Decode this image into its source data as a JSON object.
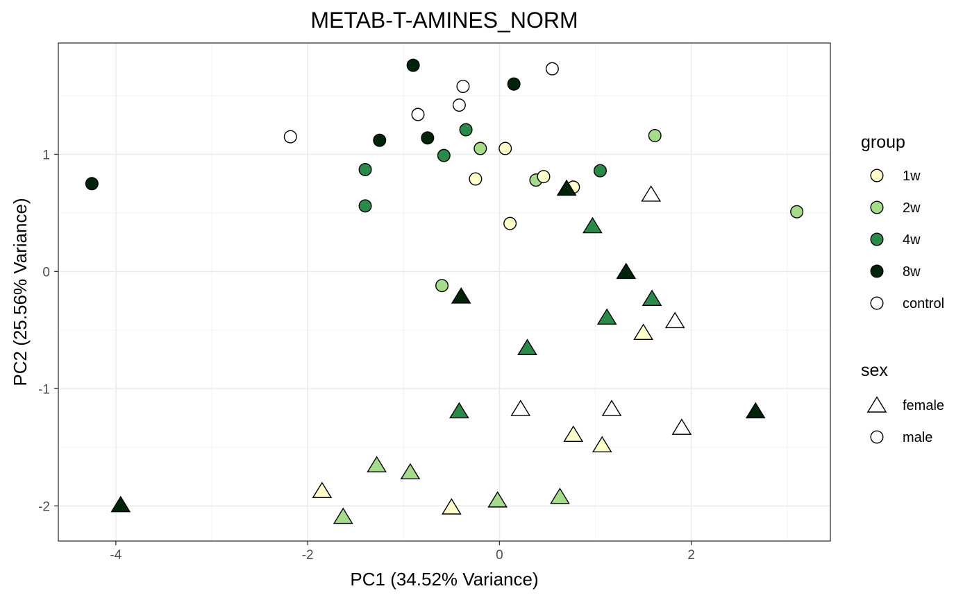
{
  "chart_data": {
    "type": "scatter",
    "title": "METAB-T-AMINES_NORM",
    "xlabel": "PC1 (34.52% Variance)",
    "ylabel": "PC2 (25.56% Variance)",
    "xlim": [
      -4.6,
      3.45
    ],
    "ylim": [
      -2.3,
      1.95
    ],
    "x_ticks": [
      -4,
      -2,
      0,
      2
    ],
    "x_tick_labels": [
      "-4",
      "-2",
      "0",
      "2"
    ],
    "y_ticks": [
      -2,
      -1,
      0,
      1
    ],
    "y_tick_labels": [
      "-2",
      "-1",
      "0",
      "1"
    ],
    "grid": true,
    "legend": {
      "position": "right",
      "group_title": "group",
      "groups": [
        {
          "name": "1w",
          "color": "#FFFFCC"
        },
        {
          "name": "2w",
          "color": "#A6DB8C"
        },
        {
          "name": "4w",
          "color": "#2B8A4A"
        },
        {
          "name": "8w",
          "color": "#00240A"
        },
        {
          "name": "control",
          "color": "#FFFFFF"
        }
      ],
      "sex_title": "sex",
      "sexes": [
        {
          "name": "female",
          "shape": "triangle"
        },
        {
          "name": "male",
          "shape": "circle"
        }
      ]
    },
    "points": [
      {
        "x": -4.25,
        "y": 0.75,
        "group": "8w",
        "sex": "male"
      },
      {
        "x": -0.9,
        "y": 1.76,
        "group": "8w",
        "sex": "male"
      },
      {
        "x": 0.15,
        "y": 1.6,
        "group": "8w",
        "sex": "male"
      },
      {
        "x": -1.25,
        "y": 1.12,
        "group": "8w",
        "sex": "male"
      },
      {
        "x": -0.75,
        "y": 1.14,
        "group": "8w",
        "sex": "male"
      },
      {
        "x": 0.55,
        "y": 1.73,
        "group": "control",
        "sex": "male"
      },
      {
        "x": -0.38,
        "y": 1.58,
        "group": "control",
        "sex": "male"
      },
      {
        "x": -0.42,
        "y": 1.42,
        "group": "control",
        "sex": "male"
      },
      {
        "x": -0.85,
        "y": 1.34,
        "group": "control",
        "sex": "male"
      },
      {
        "x": -2.18,
        "y": 1.15,
        "group": "control",
        "sex": "male"
      },
      {
        "x": -1.4,
        "y": 0.87,
        "group": "4w",
        "sex": "male"
      },
      {
        "x": -1.4,
        "y": 0.56,
        "group": "4w",
        "sex": "male"
      },
      {
        "x": -0.35,
        "y": 1.21,
        "group": "4w",
        "sex": "male"
      },
      {
        "x": -0.58,
        "y": 0.99,
        "group": "4w",
        "sex": "male"
      },
      {
        "x": 1.05,
        "y": 0.86,
        "group": "4w",
        "sex": "male"
      },
      {
        "x": -0.2,
        "y": 1.05,
        "group": "2w",
        "sex": "male"
      },
      {
        "x": 0.38,
        "y": 0.78,
        "group": "2w",
        "sex": "male"
      },
      {
        "x": 1.62,
        "y": 1.16,
        "group": "2w",
        "sex": "male"
      },
      {
        "x": 3.1,
        "y": 0.51,
        "group": "2w",
        "sex": "male"
      },
      {
        "x": -0.6,
        "y": -0.12,
        "group": "2w",
        "sex": "male"
      },
      {
        "x": 0.06,
        "y": 1.05,
        "group": "1w",
        "sex": "male"
      },
      {
        "x": -0.25,
        "y": 0.79,
        "group": "1w",
        "sex": "male"
      },
      {
        "x": 0.46,
        "y": 0.81,
        "group": "1w",
        "sex": "male"
      },
      {
        "x": 0.77,
        "y": 0.72,
        "group": "1w",
        "sex": "male"
      },
      {
        "x": 0.11,
        "y": 0.41,
        "group": "1w",
        "sex": "male"
      },
      {
        "x": 0.7,
        "y": 0.71,
        "group": "8w",
        "sex": "female"
      },
      {
        "x": 1.32,
        "y": 0.0,
        "group": "8w",
        "sex": "female"
      },
      {
        "x": -0.4,
        "y": -0.21,
        "group": "8w",
        "sex": "female"
      },
      {
        "x": 2.67,
        "y": -1.19,
        "group": "8w",
        "sex": "female"
      },
      {
        "x": -3.95,
        "y": -1.99,
        "group": "8w",
        "sex": "female"
      },
      {
        "x": 0.97,
        "y": 0.39,
        "group": "4w",
        "sex": "female"
      },
      {
        "x": 1.59,
        "y": -0.23,
        "group": "4w",
        "sex": "female"
      },
      {
        "x": 1.12,
        "y": -0.39,
        "group": "4w",
        "sex": "female"
      },
      {
        "x": 0.29,
        "y": -0.65,
        "group": "4w",
        "sex": "female"
      },
      {
        "x": -0.42,
        "y": -1.19,
        "group": "4w",
        "sex": "female"
      },
      {
        "x": 1.58,
        "y": 0.66,
        "group": "control",
        "sex": "female"
      },
      {
        "x": 1.83,
        "y": -0.42,
        "group": "control",
        "sex": "female"
      },
      {
        "x": 0.22,
        "y": -1.17,
        "group": "control",
        "sex": "female"
      },
      {
        "x": 1.17,
        "y": -1.17,
        "group": "control",
        "sex": "female"
      },
      {
        "x": 1.9,
        "y": -1.33,
        "group": "control",
        "sex": "female"
      },
      {
        "x": 1.5,
        "y": -0.52,
        "group": "1w",
        "sex": "female"
      },
      {
        "x": 0.77,
        "y": -1.39,
        "group": "1w",
        "sex": "female"
      },
      {
        "x": 1.07,
        "y": -1.48,
        "group": "1w",
        "sex": "female"
      },
      {
        "x": -1.85,
        "y": -1.87,
        "group": "1w",
        "sex": "female"
      },
      {
        "x": -0.5,
        "y": -2.01,
        "group": "1w",
        "sex": "female"
      },
      {
        "x": -1.28,
        "y": -1.65,
        "group": "2w",
        "sex": "female"
      },
      {
        "x": -0.93,
        "y": -1.71,
        "group": "2w",
        "sex": "female"
      },
      {
        "x": -1.63,
        "y": -2.09,
        "group": "2w",
        "sex": "female"
      },
      {
        "x": -0.02,
        "y": -1.95,
        "group": "2w",
        "sex": "female"
      },
      {
        "x": 0.63,
        "y": -1.92,
        "group": "2w",
        "sex": "female"
      }
    ]
  }
}
